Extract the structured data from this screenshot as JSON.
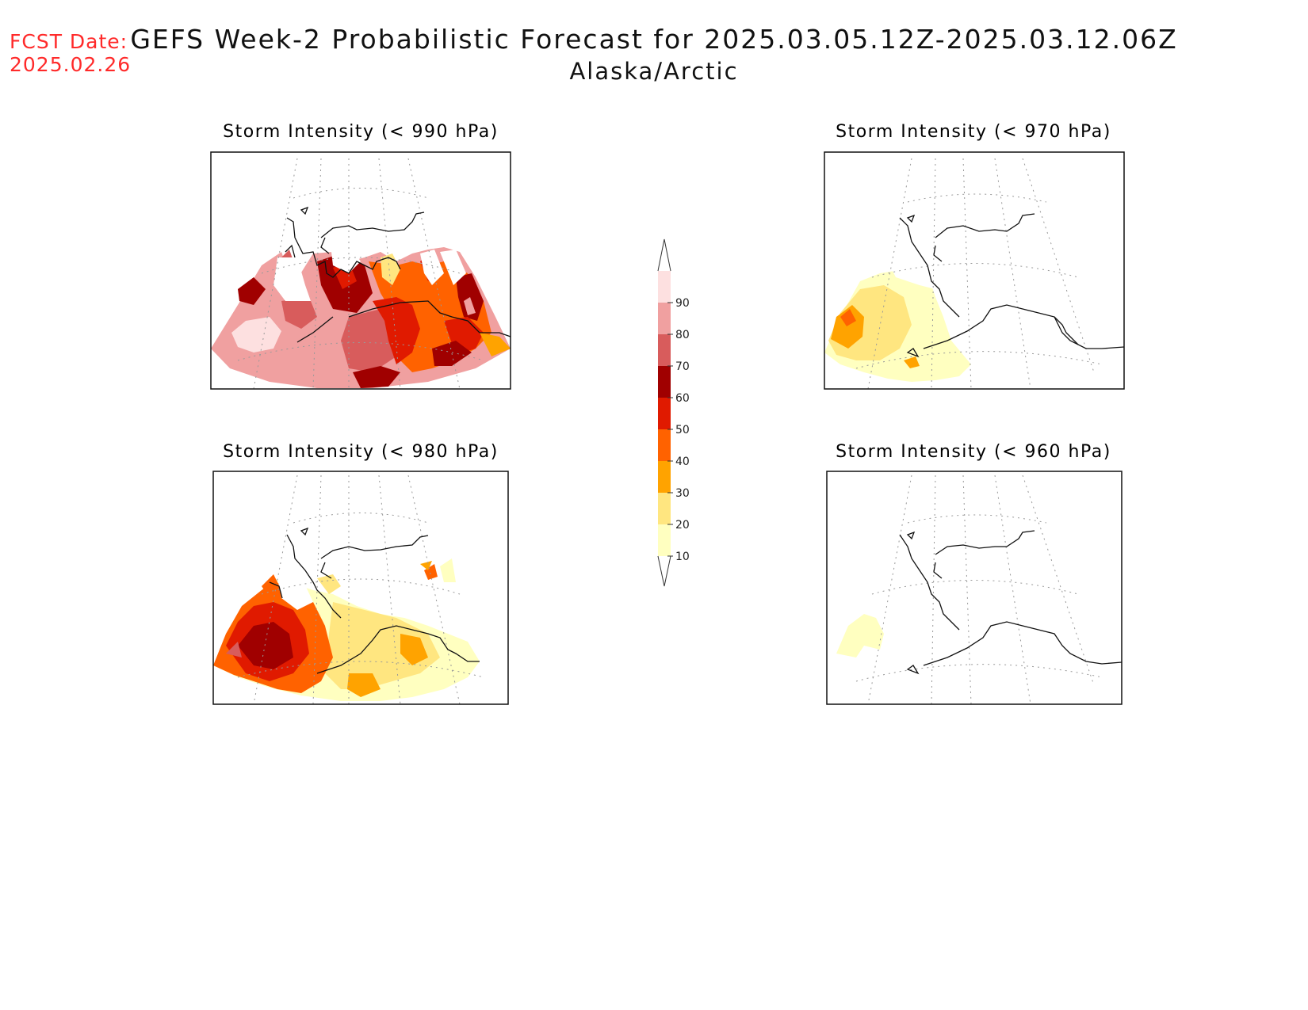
{
  "header": {
    "fcst_label": "FCST Date:",
    "fcst_date": "2025.02.26",
    "title": "GEFS Week-2 Probabilistic Forecast for 2025.03.05.12Z-2025.03.12.06Z",
    "region": "Alaska/Arctic"
  },
  "panels": [
    {
      "title": "Storm Intensity (< 990 hPa)"
    },
    {
      "title": "Storm Intensity (< 970 hPa)"
    },
    {
      "title": "Storm Intensity (< 980 hPa)"
    },
    {
      "title": "Storm Intensity (< 960 hPa)"
    }
  ],
  "colorbar": {
    "levels": [
      "10",
      "20",
      "30",
      "40",
      "50",
      "60",
      "70",
      "80",
      "90"
    ],
    "colors": [
      "#ffffc0",
      "#ffe680",
      "#ffa300",
      "#ff6200",
      "#e01a00",
      "#a00000",
      "#d85c5c",
      "#f0a0a0",
      "#fde0e0"
    ]
  },
  "colors": {
    "fcst_text": "#ff2a2a",
    "coast": "#111111",
    "grid": "#999999"
  }
}
